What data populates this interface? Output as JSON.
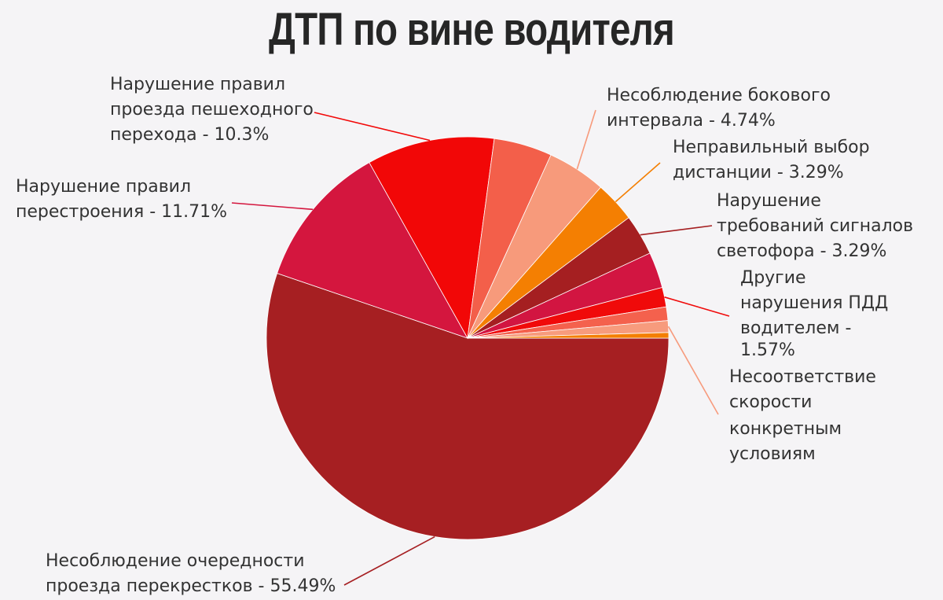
{
  "chart_data": {
    "type": "pie",
    "title": "ДТП по вине водителя",
    "series": [
      {
        "values": [
          {
            "label": "Несоблюдение очередности проезда перекрестков - 55.49%",
            "value": 55.49,
            "color": "#a61f22"
          },
          {
            "label": "Нарушение правил перестроения - 11.71%",
            "value": 11.71,
            "color": "#d4163e"
          },
          {
            "label": "Нарушение правил проезда пешеходного перехода - 10.3%",
            "value": 10.3,
            "color": "#f20707"
          },
          {
            "label": "",
            "value": 4.7,
            "color": "#f35f4a"
          },
          {
            "label": "Несоблюдение бокового интервала - 4.74%",
            "value": 4.74,
            "color": "#f79a7b"
          },
          {
            "label": "Неправильный выбор дистанции - 3.29%",
            "value": 3.29,
            "color": "#f47f02"
          },
          {
            "label": "Нарушение требований сигналов светофора - 3.29%",
            "value": 3.29,
            "color": "#a51f21"
          },
          {
            "label": "",
            "value": 2.9,
            "color": "#d21541"
          },
          {
            "label": "Другие нарушения ПДД водителем - 1.57%",
            "value": 1.57,
            "color": "#f00a0a"
          },
          {
            "label": "",
            "value": 1.1,
            "color": "#f4614d"
          },
          {
            "label": "Несоответствие скорости конкретным условиям",
            "value": 0.95,
            "color": "#f79b7d"
          },
          {
            "label": "",
            "value": 0.45,
            "color": "#f47f02"
          }
        ]
      }
    ],
    "legend": "none",
    "label_style": "outside-with-leader-lines"
  }
}
